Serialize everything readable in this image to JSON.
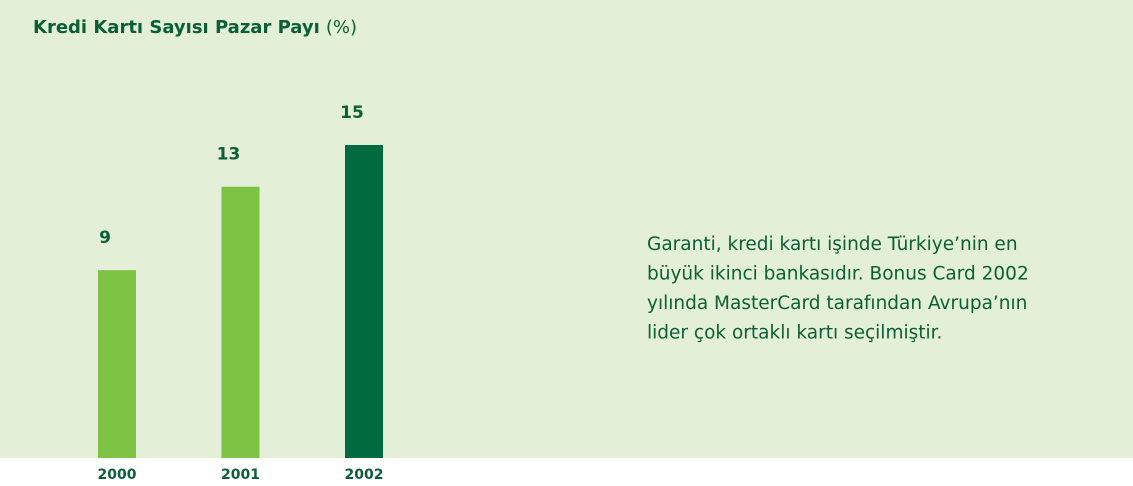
{
  "chart_data": {
    "type": "bar",
    "title": "Kredi Kartı Sayısı Pazar Payı",
    "unit": "(%)",
    "categories": [
      "2000",
      "2001",
      "2002"
    ],
    "values": [
      9,
      13,
      15
    ],
    "colors": [
      "#7dc242",
      "#7dc242",
      "#006b3f"
    ],
    "ylim": [
      0,
      15
    ],
    "annotation": [
      "Garanti, kredi kartı işinde Türkiye’nin en",
      "büyük ikinci bankasıdır. Bonus Card 2002",
      "yılında MasterCard tarafından Avrupa’nın",
      "lider çok ortaklı kartı seçilmiştir."
    ]
  }
}
